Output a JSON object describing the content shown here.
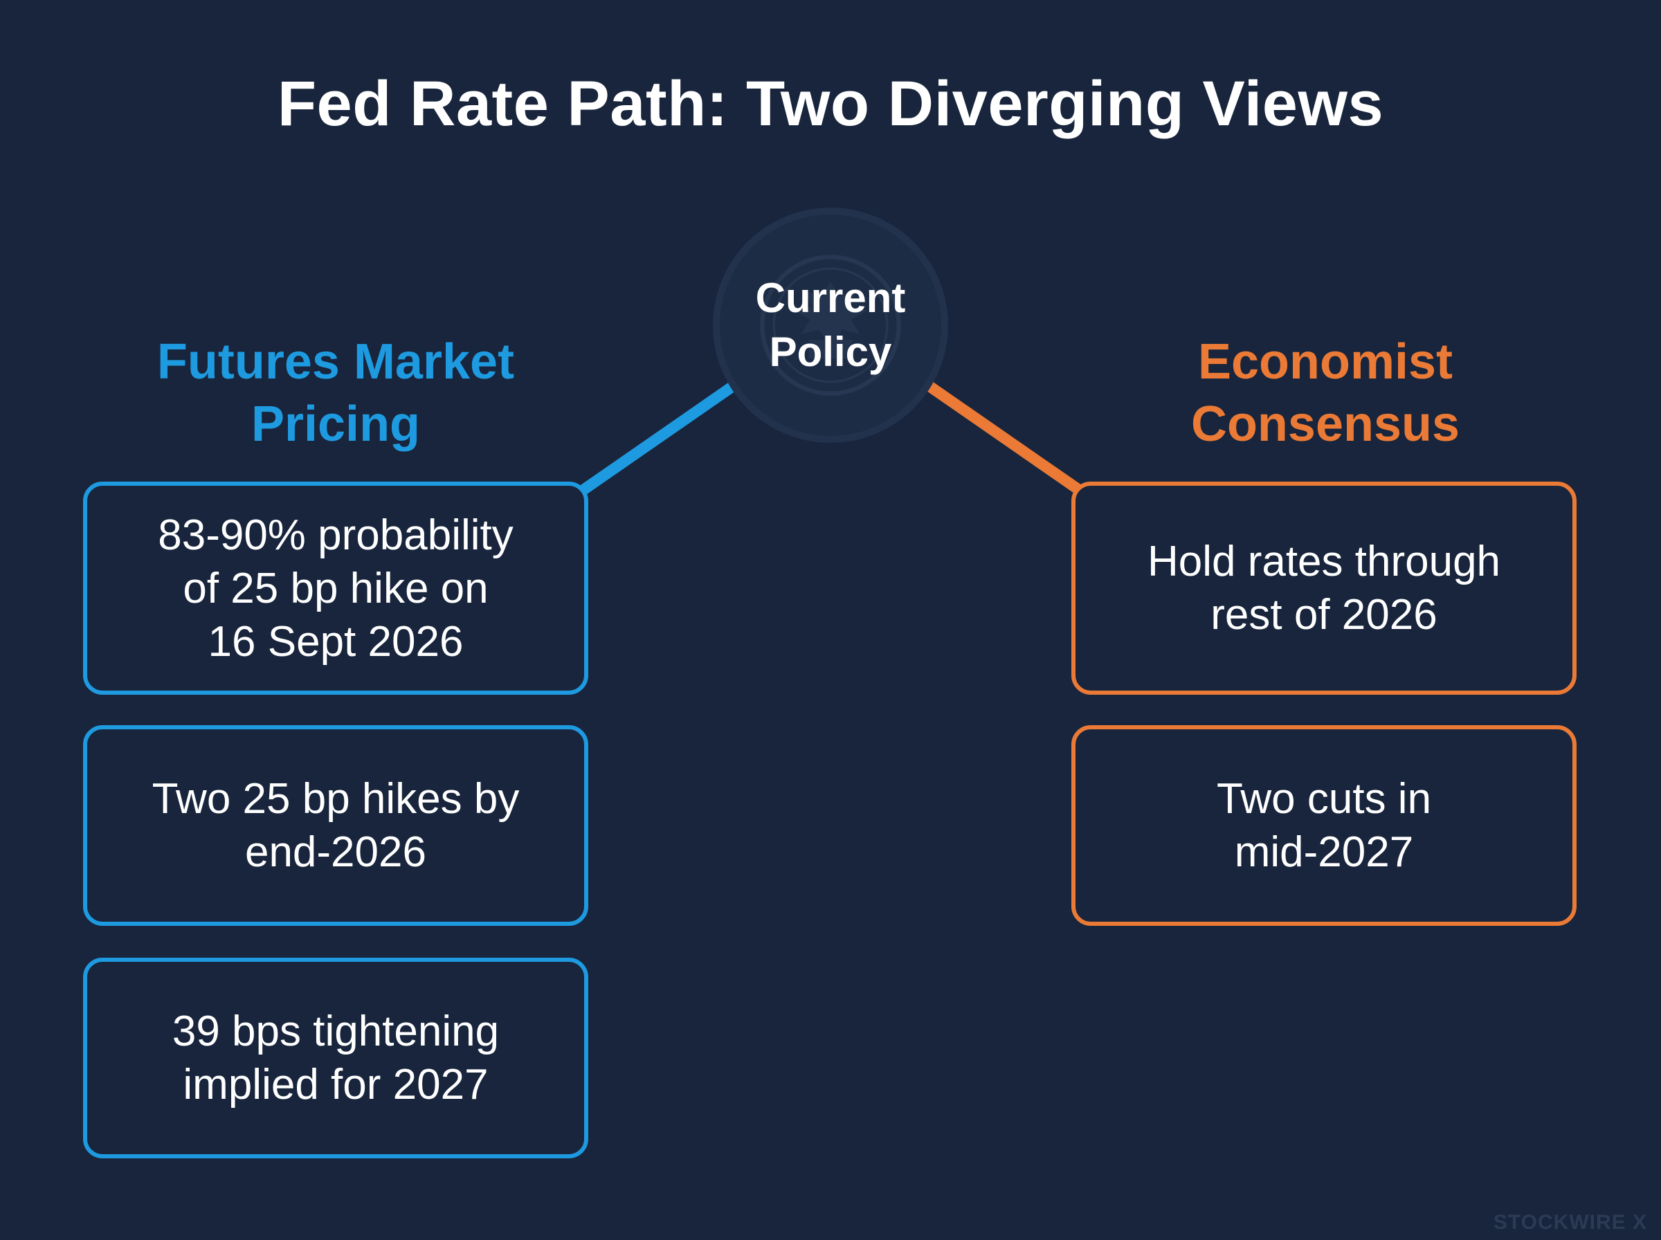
{
  "title": "Fed Rate Path: Two Diverging Views",
  "hub": {
    "label": "Current\nPolicy"
  },
  "left": {
    "heading": "Futures Market\nPricing",
    "color": "#1e9ae0",
    "cards": [
      "83-90% probability\nof 25 bp hike on\n16 Sept 2026",
      "Two 25 bp hikes by\nend-2026",
      "39 bps tightening\nimplied for 2027"
    ]
  },
  "right": {
    "heading": "Economist\nConsensus",
    "color": "#ea7a35",
    "cards": [
      "Hold rates through\nrest of 2026",
      "Two cuts in\nmid-2027"
    ]
  },
  "watermark": "STOCKWIRE X",
  "colors": {
    "background": "#18253c",
    "hub": "#1d2c45"
  }
}
